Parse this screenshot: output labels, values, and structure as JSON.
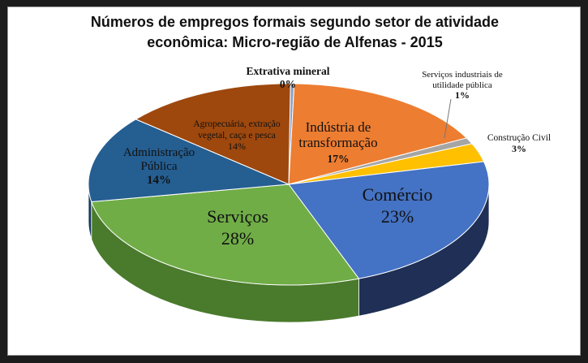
{
  "chart_data": {
    "type": "pie",
    "title_lines": [
      "Números de empregos formais segundo setor de atividade",
      "econômica: Micro-região de Alfenas - 2015"
    ],
    "slices": [
      {
        "label_lines": [
          "Extrativa  mineral"
        ],
        "value_label": "0%",
        "value": 0.3,
        "color": "#8aa0c8",
        "side_color": "#5e7198"
      },
      {
        "label_lines": [
          "Indústria de",
          "transformação"
        ],
        "value_label": "17%",
        "value": 17,
        "color": "#ed7d31",
        "side_color": "#a94f15"
      },
      {
        "label_lines": [
          "Serviços industriais  de",
          "utilidade pública"
        ],
        "value_label": "1%",
        "value": 1,
        "color": "#a5a5a5",
        "side_color": "#6f6f6f"
      },
      {
        "label_lines": [
          "Construção  Civil"
        ],
        "value_label": "3%",
        "value": 3,
        "color": "#ffc000",
        "side_color": "#b48600"
      },
      {
        "label_lines": [
          "Comércio"
        ],
        "value_label": "23%",
        "value": 23,
        "color": "#4472c4",
        "side_color": "#1f2f55"
      },
      {
        "label_lines": [
          "Serviços"
        ],
        "value_label": "28%",
        "value": 28,
        "color": "#70ad47",
        "side_color": "#4a7a2c"
      },
      {
        "label_lines": [
          "Administração",
          "Pública"
        ],
        "value_label": "14%",
        "value": 14,
        "color": "#255e91",
        "side_color": "#163a5a"
      },
      {
        "label_lines": [
          "Agropecuária,  extração",
          "vegetal,  caça e pesca"
        ],
        "value_label": "14%",
        "value": 14,
        "color": "#9e480e",
        "side_color": "#6b2f08"
      }
    ]
  }
}
